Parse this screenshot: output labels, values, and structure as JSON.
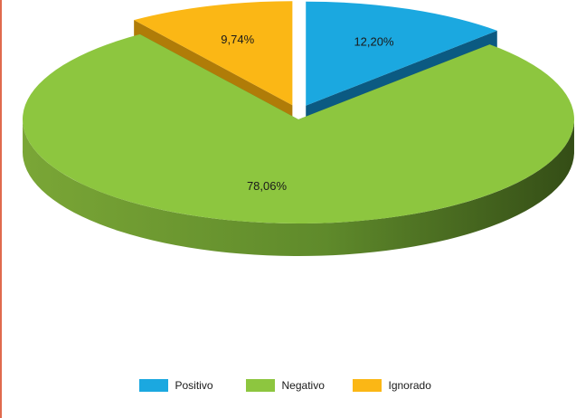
{
  "chart_data": {
    "type": "pie",
    "style": "3d-exploded",
    "title": "",
    "slices": [
      {
        "name": "Positivo",
        "value": 12.2,
        "label": "12,20%",
        "color": "#1ba8e0",
        "side_color": "#0b5a82",
        "exploded": true
      },
      {
        "name": "Negativo",
        "value": 78.06,
        "label": "78,06%",
        "color": "#8dc63f",
        "side_color": "#4f7a25",
        "exploded": false
      },
      {
        "name": "Ignorado",
        "value": 9.74,
        "label": "9,74%",
        "color": "#fbb715",
        "side_color": "#b07c08",
        "exploded": true
      }
    ],
    "legend": {
      "position": "bottom",
      "items": [
        {
          "label": "Positivo",
          "color": "#1ba8e0"
        },
        {
          "label": "Negativo",
          "color": "#8dc63f"
        },
        {
          "label": "Ignorado",
          "color": "#fbb715"
        }
      ]
    }
  }
}
